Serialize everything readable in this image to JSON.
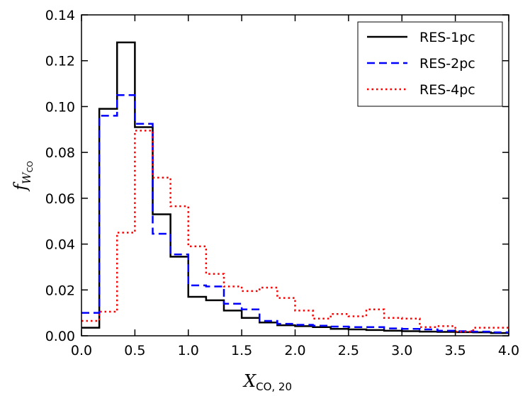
{
  "chart_data": {
    "type": "step-histogram",
    "title": "",
    "xlabel": {
      "main": "X",
      "sub": "CO, 20"
    },
    "ylabel": {
      "main": "f",
      "sub_main": "W",
      "sub_sub": "CO"
    },
    "xlim": [
      0.0,
      4.0
    ],
    "ylim": [
      0.0,
      0.14
    ],
    "xticks": [
      0.0,
      0.5,
      1.0,
      1.5,
      2.0,
      2.5,
      3.0,
      3.5,
      4.0
    ],
    "xtick_labels": [
      "0.0",
      "0.5",
      "1.0",
      "1.5",
      "2.0",
      "2.5",
      "3.0",
      "3.5",
      "4.0"
    ],
    "yticks": [
      0.0,
      0.02,
      0.04,
      0.06,
      0.08,
      0.1,
      0.12,
      0.14
    ],
    "ytick_labels": [
      "0.00",
      "0.02",
      "0.04",
      "0.06",
      "0.08",
      "0.10",
      "0.12",
      "0.14"
    ],
    "legend_position": "top-right",
    "bin_edges": [
      0.0,
      0.1667,
      0.3333,
      0.5,
      0.6667,
      0.8333,
      1.0,
      1.1667,
      1.3333,
      1.5,
      1.6667,
      1.8333,
      2.0,
      2.1667,
      2.3333,
      2.5,
      2.6667,
      2.8333,
      3.0,
      3.1667,
      3.3333,
      3.5,
      3.6667,
      3.8333,
      4.0
    ],
    "series": [
      {
        "name": "RES-1pc",
        "color": "#000000",
        "style": "solid",
        "values": [
          0.0035,
          0.099,
          0.128,
          0.091,
          0.053,
          0.0345,
          0.017,
          0.0155,
          0.011,
          0.0078,
          0.0058,
          0.0046,
          0.0042,
          0.0038,
          0.003,
          0.0028,
          0.0025,
          0.0022,
          0.002,
          0.0018,
          0.0017,
          0.0016,
          0.0015,
          0.0012
        ]
      },
      {
        "name": "RES-2pc",
        "color": "#0000ff",
        "style": "dashed",
        "values": [
          0.01,
          0.096,
          0.105,
          0.0925,
          0.0445,
          0.0355,
          0.022,
          0.0215,
          0.014,
          0.0115,
          0.0065,
          0.0052,
          0.0048,
          0.0044,
          0.004,
          0.0038,
          0.0038,
          0.0032,
          0.003,
          0.0028,
          0.0022,
          0.002,
          0.0018,
          0.0015
        ]
      },
      {
        "name": "RES-4pc",
        "color": "#ff0000",
        "style": "dotted",
        "values": [
          0.0065,
          0.0105,
          0.045,
          0.0895,
          0.069,
          0.0565,
          0.039,
          0.027,
          0.0215,
          0.0195,
          0.021,
          0.0165,
          0.011,
          0.0075,
          0.0095,
          0.0085,
          0.0115,
          0.0078,
          0.0075,
          0.0038,
          0.0042,
          0.0018,
          0.0035,
          0.0035
        ]
      }
    ]
  }
}
